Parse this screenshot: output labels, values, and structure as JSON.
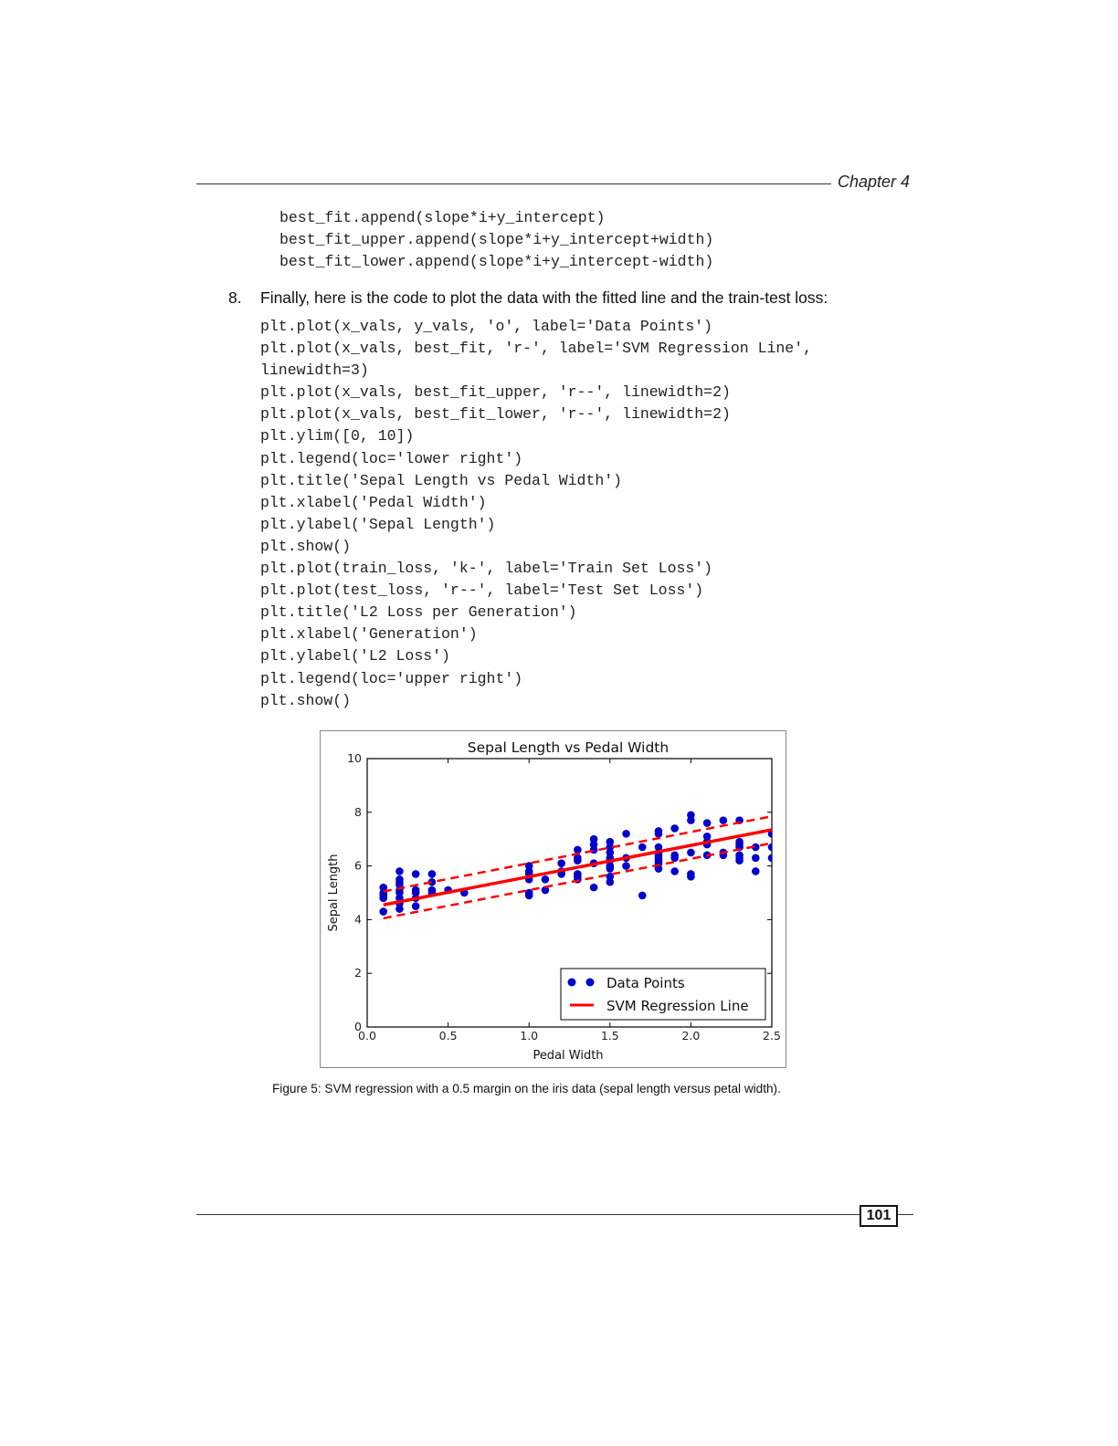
{
  "header": {
    "chapter": "Chapter 4"
  },
  "code_block_1": [
    "best_fit.append(slope*i+y_intercept)",
    "best_fit_upper.append(slope*i+y_intercept+width)",
    "best_fit_lower.append(slope*i+y_intercept-width)"
  ],
  "step": {
    "number": "8.",
    "text": "Finally, here is the code to plot the data with the fitted line and the train-test loss:"
  },
  "code_block_2": [
    "plt.plot(x_vals, y_vals, 'o', label='Data Points')",
    "plt.plot(x_vals, best_fit, 'r-', label='SVM Regression Line',",
    "linewidth=3)",
    "plt.plot(x_vals, best_fit_upper, 'r--', linewidth=2)",
    "plt.plot(x_vals, best_fit_lower, 'r--', linewidth=2)",
    "plt.ylim([0, 10])",
    "plt.legend(loc='lower right')",
    "plt.title('Sepal Length vs Pedal Width')",
    "plt.xlabel('Pedal Width')",
    "plt.ylabel('Sepal Length')",
    "plt.show()",
    "plt.plot(train_loss, 'k-', label='Train Set Loss')",
    "plt.plot(test_loss, 'r--', label='Test Set Loss')",
    "plt.title('L2 Loss per Generation')",
    "plt.xlabel('Generation')",
    "plt.ylabel('L2 Loss')",
    "plt.legend(loc='upper right')",
    "plt.show()"
  ],
  "chart_data": {
    "type": "scatter",
    "title": "Sepal Length vs Pedal Width",
    "xlabel": "Pedal Width",
    "ylabel": "Sepal Length",
    "xlim": [
      0,
      2.5
    ],
    "ylim": [
      0,
      10
    ],
    "xticks": [
      "0.0",
      "0.5",
      "1.0",
      "1.5",
      "2.0",
      "2.5"
    ],
    "yticks": [
      "0",
      "2",
      "4",
      "6",
      "8",
      "10"
    ],
    "legend_position": "lower-right",
    "colors": {
      "points": "#0000cc",
      "line": "#ff0000"
    },
    "series": [
      {
        "name": "Data Points",
        "style": "markers",
        "points": [
          [
            0.1,
            4.3
          ],
          [
            0.1,
            4.8
          ],
          [
            0.1,
            4.9
          ],
          [
            0.1,
            5.0
          ],
          [
            0.1,
            5.2
          ],
          [
            0.2,
            4.4
          ],
          [
            0.2,
            4.6
          ],
          [
            0.2,
            4.8
          ],
          [
            0.2,
            5.0
          ],
          [
            0.2,
            5.1
          ],
          [
            0.2,
            5.3
          ],
          [
            0.2,
            5.4
          ],
          [
            0.2,
            5.5
          ],
          [
            0.2,
            5.8
          ],
          [
            0.3,
            4.5
          ],
          [
            0.3,
            4.8
          ],
          [
            0.3,
            5.0
          ],
          [
            0.3,
            5.1
          ],
          [
            0.3,
            5.7
          ],
          [
            0.4,
            5.0
          ],
          [
            0.4,
            5.1
          ],
          [
            0.4,
            5.4
          ],
          [
            0.4,
            5.7
          ],
          [
            0.5,
            5.1
          ],
          [
            0.6,
            5.0
          ],
          [
            1.0,
            4.9
          ],
          [
            1.0,
            5.0
          ],
          [
            1.0,
            5.5
          ],
          [
            1.0,
            5.7
          ],
          [
            1.0,
            5.8
          ],
          [
            1.0,
            6.0
          ],
          [
            1.1,
            5.1
          ],
          [
            1.1,
            5.5
          ],
          [
            1.2,
            5.7
          ],
          [
            1.2,
            5.8
          ],
          [
            1.2,
            6.1
          ],
          [
            1.3,
            5.5
          ],
          [
            1.3,
            5.6
          ],
          [
            1.3,
            5.7
          ],
          [
            1.3,
            6.2
          ],
          [
            1.3,
            6.3
          ],
          [
            1.3,
            6.6
          ],
          [
            1.4,
            5.2
          ],
          [
            1.4,
            6.1
          ],
          [
            1.4,
            6.6
          ],
          [
            1.4,
            6.8
          ],
          [
            1.4,
            7.0
          ],
          [
            1.5,
            5.4
          ],
          [
            1.5,
            5.6
          ],
          [
            1.5,
            5.9
          ],
          [
            1.5,
            6.0
          ],
          [
            1.5,
            6.2
          ],
          [
            1.5,
            6.3
          ],
          [
            1.5,
            6.5
          ],
          [
            1.5,
            6.7
          ],
          [
            1.5,
            6.9
          ],
          [
            1.6,
            6.0
          ],
          [
            1.6,
            6.3
          ],
          [
            1.6,
            7.2
          ],
          [
            1.7,
            4.9
          ],
          [
            1.7,
            6.7
          ],
          [
            1.8,
            5.9
          ],
          [
            1.8,
            6.1
          ],
          [
            1.8,
            6.2
          ],
          [
            1.8,
            6.3
          ],
          [
            1.8,
            6.4
          ],
          [
            1.8,
            6.5
          ],
          [
            1.8,
            6.7
          ],
          [
            1.8,
            7.2
          ],
          [
            1.8,
            7.3
          ],
          [
            1.9,
            5.8
          ],
          [
            1.9,
            6.3
          ],
          [
            1.9,
            6.4
          ],
          [
            1.9,
            7.4
          ],
          [
            2.0,
            5.6
          ],
          [
            2.0,
            5.7
          ],
          [
            2.0,
            6.5
          ],
          [
            2.0,
            7.7
          ],
          [
            2.0,
            7.9
          ],
          [
            2.1,
            6.4
          ],
          [
            2.1,
            6.8
          ],
          [
            2.1,
            6.9
          ],
          [
            2.1,
            7.1
          ],
          [
            2.1,
            7.6
          ],
          [
            2.2,
            6.4
          ],
          [
            2.2,
            6.5
          ],
          [
            2.2,
            7.7
          ],
          [
            2.3,
            6.2
          ],
          [
            2.3,
            6.3
          ],
          [
            2.3,
            6.4
          ],
          [
            2.3,
            6.7
          ],
          [
            2.3,
            6.8
          ],
          [
            2.3,
            6.9
          ],
          [
            2.3,
            7.7
          ],
          [
            2.4,
            5.8
          ],
          [
            2.4,
            6.3
          ],
          [
            2.4,
            6.7
          ],
          [
            2.5,
            6.3
          ],
          [
            2.5,
            6.7
          ],
          [
            2.5,
            7.2
          ]
        ]
      },
      {
        "name": "SVM Regression Line",
        "style": "solid",
        "x": [
          0.1,
          2.5
        ],
        "y": [
          4.55,
          7.35
        ]
      },
      {
        "style": "dashed",
        "x": [
          0.1,
          2.5
        ],
        "y": [
          5.05,
          7.85
        ]
      },
      {
        "style": "dashed",
        "x": [
          0.1,
          2.5
        ],
        "y": [
          4.05,
          6.85
        ]
      }
    ]
  },
  "caption": "Figure 5: SVM regression with a 0.5 margin on the iris data (sepal length versus petal width).",
  "footer": {
    "page_number": "101"
  }
}
